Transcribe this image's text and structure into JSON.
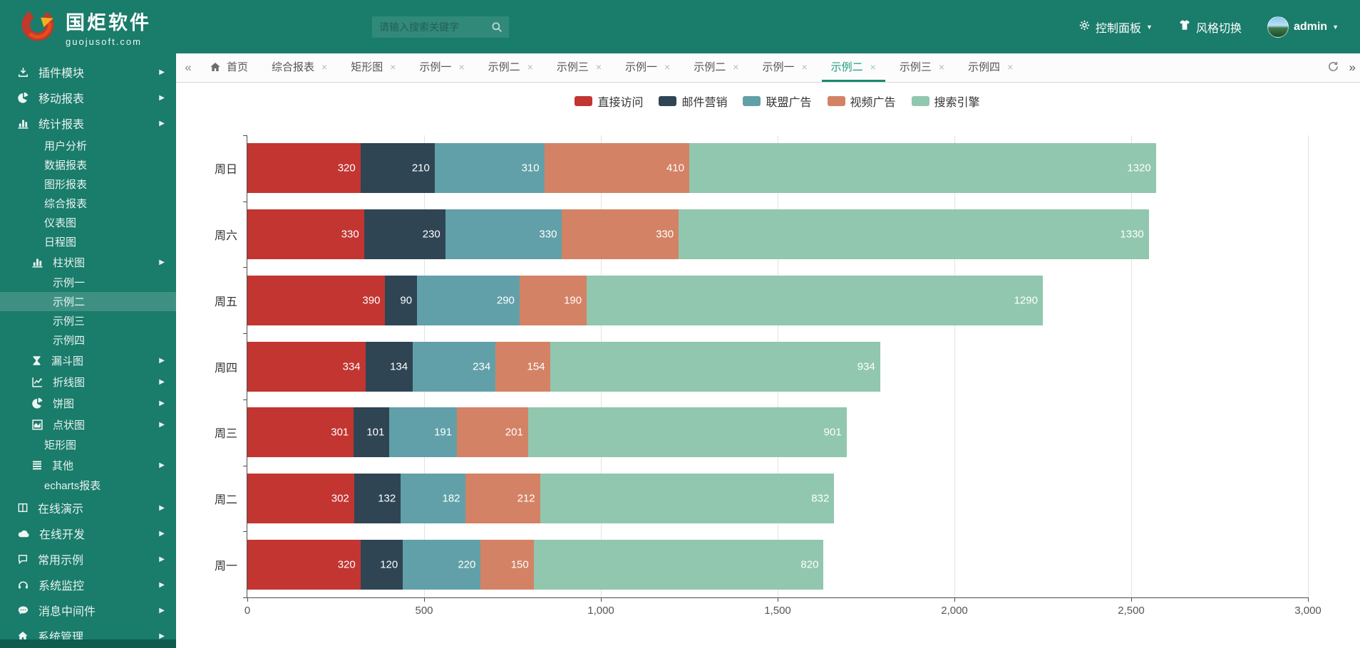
{
  "header": {
    "logo_title": "国炬软件",
    "logo_subtitle": "guojusoft.com",
    "search_placeholder": "请输入搜索关键字",
    "actions": {
      "control_panel": "控制面板",
      "style_switch": "风格切换",
      "username": "admin"
    }
  },
  "sidebar": {
    "items": [
      {
        "label": "插件模块",
        "level": 0,
        "icon": "download",
        "arrow": true
      },
      {
        "label": "移动报表",
        "level": 0,
        "icon": "pie",
        "arrow": true
      },
      {
        "label": "统计报表",
        "level": 0,
        "icon": "bar-chart",
        "arrow": true
      },
      {
        "label": "用户分析",
        "level": 1
      },
      {
        "label": "数据报表",
        "level": 1
      },
      {
        "label": "图形报表",
        "level": 1
      },
      {
        "label": "综合报表",
        "level": 1
      },
      {
        "label": "仪表图",
        "level": 1
      },
      {
        "label": "日程图",
        "level": 1
      },
      {
        "label": "柱状图",
        "level": 1,
        "icon": "bar-chart",
        "arrow": true
      },
      {
        "label": "示例一",
        "level": 2
      },
      {
        "label": "示例二",
        "level": 2,
        "active": true
      },
      {
        "label": "示例三",
        "level": 2
      },
      {
        "label": "示例四",
        "level": 2
      },
      {
        "label": "漏斗图",
        "level": 1,
        "icon": "hourglass",
        "arrow": true
      },
      {
        "label": "折线图",
        "level": 1,
        "icon": "line-chart",
        "arrow": true
      },
      {
        "label": "饼图",
        "level": 1,
        "icon": "pie",
        "arrow": true
      },
      {
        "label": "点状图",
        "level": 1,
        "icon": "area-chart",
        "arrow": true
      },
      {
        "label": "矩形图",
        "level": 1
      },
      {
        "label": "其他",
        "level": 1,
        "icon": "list",
        "arrow": true
      },
      {
        "label": "echarts报表",
        "level": 1
      },
      {
        "label": "在线演示",
        "level": 0,
        "icon": "columns",
        "arrow": true
      },
      {
        "label": "在线开发",
        "level": 0,
        "icon": "cloud",
        "arrow": true
      },
      {
        "label": "常用示例",
        "level": 0,
        "icon": "comment",
        "arrow": true
      },
      {
        "label": "系统监控",
        "level": 0,
        "icon": "headset",
        "arrow": true
      },
      {
        "label": "消息中间件",
        "level": 0,
        "icon": "message",
        "arrow": true
      },
      {
        "label": "系统管理",
        "level": 0,
        "icon": "home",
        "arrow": true
      }
    ]
  },
  "tabs": {
    "items": [
      {
        "label": "首页",
        "icon": "home",
        "closable": false
      },
      {
        "label": "综合报表",
        "closable": true
      },
      {
        "label": "矩形图",
        "closable": true
      },
      {
        "label": "示例一",
        "closable": true
      },
      {
        "label": "示例二",
        "closable": true
      },
      {
        "label": "示例三",
        "closable": true
      },
      {
        "label": "示例一",
        "closable": true
      },
      {
        "label": "示例二",
        "closable": true
      },
      {
        "label": "示例一",
        "closable": true
      },
      {
        "label": "示例二",
        "closable": true,
        "active": true
      },
      {
        "label": "示例三",
        "closable": true
      },
      {
        "label": "示例四",
        "closable": true
      }
    ]
  },
  "colors": {
    "theme": "#1a7c6b",
    "theme_dark": "#0f5c4e",
    "tab_active": "#1a9c80",
    "axis": "#4d4d4d",
    "grid": "#e3e3e3"
  },
  "chart_data": {
    "type": "bar",
    "orientation": "horizontal",
    "stacked": true,
    "title": "",
    "categories": [
      "周日",
      "周六",
      "周五",
      "周四",
      "周三",
      "周二",
      "周一"
    ],
    "series": [
      {
        "name": "直接访问",
        "color": "#c23531",
        "values": [
          320,
          330,
          390,
          334,
          301,
          302,
          320
        ]
      },
      {
        "name": "邮件营销",
        "color": "#2f4554",
        "values": [
          210,
          230,
          90,
          134,
          101,
          132,
          120
        ]
      },
      {
        "name": "联盟广告",
        "color": "#61a0a8",
        "values": [
          310,
          330,
          290,
          234,
          191,
          182,
          220
        ]
      },
      {
        "name": "视频广告",
        "color": "#d48265",
        "values": [
          410,
          330,
          190,
          154,
          201,
          212,
          150
        ]
      },
      {
        "name": "搜索引擎",
        "color": "#91c7ae",
        "values": [
          1320,
          1330,
          1290,
          934,
          901,
          832,
          820
        ]
      }
    ],
    "xlim": [
      0,
      3000
    ],
    "x_ticks": [
      0,
      500,
      1000,
      1500,
      2000,
      2500,
      3000
    ],
    "x_tick_labels": [
      "0",
      "500",
      "1,000",
      "1,500",
      "2,000",
      "2,500",
      "3,000"
    ],
    "legend_position": "top",
    "grid": true,
    "value_labels": "inside-right, white"
  }
}
